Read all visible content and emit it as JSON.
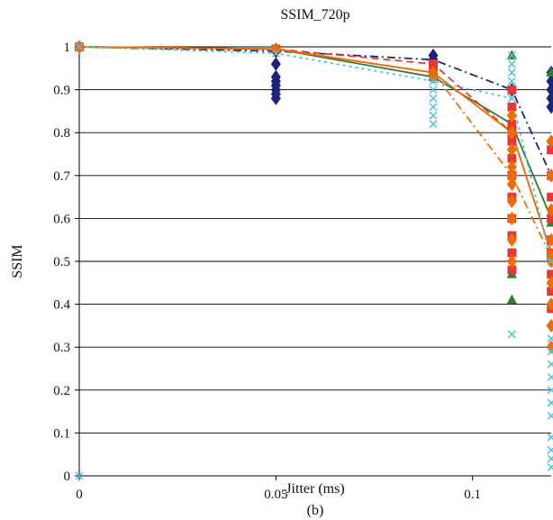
{
  "chart_data": {
    "type": "scatter",
    "title": "SSIM_720p",
    "xlabel": "Jitter (ms)",
    "ylabel": "SSIM",
    "panel_label": "(b)",
    "xlim": [
      0,
      0.12
    ],
    "ylim": [
      0,
      1
    ],
    "x_ticks": [
      {
        "value": 0,
        "label": "0"
      },
      {
        "value": 0.05,
        "label": "0.05"
      },
      {
        "value": 0.1,
        "label": "0.1"
      }
    ],
    "y_ticks": [
      {
        "value": 0,
        "label": "0"
      },
      {
        "value": 0.1,
        "label": "0.1"
      },
      {
        "value": 0.2,
        "label": "0.2"
      },
      {
        "value": 0.3,
        "label": "0.3"
      },
      {
        "value": 0.4,
        "label": "0.4"
      },
      {
        "value": 0.5,
        "label": "0.5"
      },
      {
        "value": 0.6,
        "label": "0.6"
      },
      {
        "value": 0.7,
        "label": "0.7"
      },
      {
        "value": 0.8,
        "label": "0.8"
      },
      {
        "value": 0.9,
        "label": "0.9"
      },
      {
        "value": 1,
        "label": "1"
      }
    ],
    "grid": "horizontal",
    "x": [
      0,
      0.05,
      0.09,
      0.11,
      0.12
    ],
    "series": [
      {
        "color": "#1a237e",
        "line": "dashdot",
        "marker": "diamond",
        "values": [
          1.0,
          0.99,
          0.97,
          0.9,
          0.7
        ],
        "points": [
          [
            0.05,
            0.88
          ],
          [
            0.05,
            0.89
          ],
          [
            0.05,
            0.9
          ],
          [
            0.05,
            0.91
          ],
          [
            0.05,
            0.92
          ],
          [
            0.05,
            0.93
          ],
          [
            0.05,
            0.96
          ],
          [
            0.09,
            0.98
          ],
          [
            0.09,
            0.96
          ],
          [
            0.12,
            0.94
          ],
          [
            0.12,
            0.92
          ],
          [
            0.12,
            0.9
          ],
          [
            0.12,
            0.88
          ],
          [
            0.12,
            0.86
          ]
        ]
      },
      {
        "color": "#2e7d32",
        "line": "solid",
        "marker": "triangle",
        "values": [
          1.0,
          0.995,
          0.93,
          0.82,
          0.6
        ],
        "points": [
          [
            0.11,
            0.41
          ],
          [
            0.11,
            0.47
          ],
          [
            0.11,
            0.98
          ],
          [
            0.12,
            0.94
          ],
          [
            0.12,
            0.59
          ]
        ]
      },
      {
        "color": "#e53935",
        "line": "dashed",
        "marker": "square",
        "values": [
          1.0,
          0.995,
          0.96,
          0.8,
          0.52
        ],
        "points": [
          [
            0.11,
            0.48
          ],
          [
            0.11,
            0.52
          ],
          [
            0.11,
            0.56
          ],
          [
            0.11,
            0.6
          ],
          [
            0.11,
            0.65
          ],
          [
            0.11,
            0.7
          ],
          [
            0.11,
            0.74
          ],
          [
            0.11,
            0.78
          ],
          [
            0.11,
            0.82
          ],
          [
            0.11,
            0.86
          ],
          [
            0.11,
            0.9
          ],
          [
            0.12,
            0.39
          ],
          [
            0.12,
            0.43
          ],
          [
            0.12,
            0.47
          ],
          [
            0.12,
            0.51
          ],
          [
            0.12,
            0.55
          ],
          [
            0.12,
            0.6
          ],
          [
            0.12,
            0.65
          ],
          [
            0.12,
            0.7
          ],
          [
            0.12,
            0.76
          ],
          [
            0.09,
            0.96
          ],
          [
            0.09,
            0.94
          ]
        ]
      },
      {
        "color": "#ef6c00",
        "line": "dashdot",
        "marker": "diamond",
        "values": [
          1.0,
          0.995,
          0.94,
          0.7,
          0.51
        ],
        "points": [
          [
            0.11,
            0.5
          ],
          [
            0.11,
            0.55
          ],
          [
            0.11,
            0.6
          ],
          [
            0.11,
            0.64
          ],
          [
            0.11,
            0.68
          ],
          [
            0.11,
            0.72
          ],
          [
            0.11,
            0.76
          ],
          [
            0.11,
            0.8
          ],
          [
            0.11,
            0.84
          ],
          [
            0.12,
            0.3
          ],
          [
            0.12,
            0.35
          ],
          [
            0.12,
            0.4
          ],
          [
            0.12,
            0.45
          ],
          [
            0.12,
            0.5
          ],
          [
            0.12,
            0.55
          ],
          [
            0.12,
            0.62
          ],
          [
            0.12,
            0.7
          ],
          [
            0.12,
            0.78
          ],
          [
            0.09,
            0.93
          ]
        ]
      },
      {
        "color": "#ef6c00",
        "line": "solid",
        "marker": "circle",
        "values": [
          1.0,
          0.995,
          0.94,
          0.8,
          0.52
        ],
        "points": []
      },
      {
        "color": "#4dc3d9",
        "line": "dotted",
        "marker": "x",
        "values": [
          1.0,
          0.985,
          0.92,
          0.88,
          0.5
        ],
        "points": [
          [
            0.09,
            0.82
          ],
          [
            0.09,
            0.84
          ],
          [
            0.09,
            0.86
          ],
          [
            0.09,
            0.88
          ],
          [
            0.09,
            0.9
          ],
          [
            0.11,
            0.33
          ],
          [
            0.11,
            0.92
          ],
          [
            0.11,
            0.94
          ],
          [
            0.11,
            0.96
          ],
          [
            0.11,
            0.98
          ],
          [
            0.12,
            0.02
          ],
          [
            0.12,
            0.04
          ],
          [
            0.12,
            0.06
          ],
          [
            0.12,
            0.09
          ],
          [
            0.12,
            0.14
          ],
          [
            0.12,
            0.17
          ],
          [
            0.12,
            0.2
          ],
          [
            0.12,
            0.23
          ],
          [
            0.12,
            0.26
          ],
          [
            0.12,
            0.29
          ],
          [
            0.12,
            0.32
          ],
          [
            0,
            0
          ]
        ]
      }
    ]
  }
}
